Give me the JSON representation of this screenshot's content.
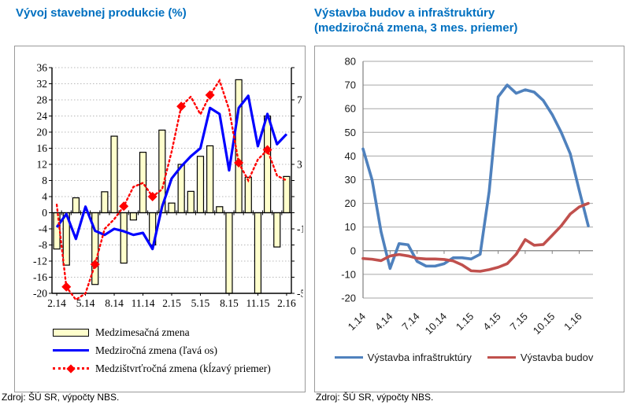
{
  "left_chart": {
    "title": "Vývoj stavebnej produkcie (%)",
    "source": "Zdroj: ŠÚ SR, výpočty NBS.",
    "legend": [
      {
        "label": "Medzimesačná zmena",
        "swatch": "bar-swatch"
      },
      {
        "label": "Medziročná zmena (ľavá os)",
        "swatch": "blue-line-swatch"
      },
      {
        "label": "Medzištvrťročná zmena (kĺzavý priemer)",
        "swatch": "red-dotted-diamond-swatch"
      }
    ]
  },
  "right_chart": {
    "title": "Výstavba budov a infraštruktúry\n(medziročná zmena, 3 mes. priemer)",
    "source": "Zdroj: ŠÚ SR, výpočty NBS.",
    "legend": [
      {
        "label": "Výstavba infraštruktúry",
        "color": "#4F81BD"
      },
      {
        "label": "Výstavba budov",
        "color": "#C0504D"
      }
    ]
  },
  "chart_data": [
    {
      "type": "combo",
      "title": "Vývoj stavebnej produkcie (%)",
      "categories": [
        "2.14",
        "3.14",
        "4.14",
        "5.14",
        "6.14",
        "7.14",
        "8.14",
        "9.14",
        "10.14",
        "11.14",
        "12.14",
        "1.15",
        "2.15",
        "3.15",
        "4.15",
        "5.15",
        "6.15",
        "7.15",
        "8.15",
        "9.15",
        "10.15",
        "11.15",
        "12.15",
        "1.16",
        "2.16"
      ],
      "x_tick_labels": [
        "2.14",
        "5.14",
        "8.14",
        "11.14",
        "2.15",
        "5.15",
        "8.15",
        "11.15",
        "2.16"
      ],
      "left_axis": {
        "min": -20,
        "max": 36,
        "step": 4
      },
      "right_axis": {
        "ticks": [
          7,
          3,
          -1,
          -5
        ],
        "left_units_per_right_unit": 4
      },
      "grid": "dotted",
      "series": [
        {
          "name": "Medzimesačná zmena",
          "type": "bar",
          "axis": "left",
          "color": "#FFFFCC",
          "border": "#000000",
          "values": [
            -9,
            -13,
            3.7,
            0,
            -17.8,
            5.2,
            19,
            -12.5,
            -1.8,
            15,
            -8,
            20.5,
            2.4,
            12,
            5.3,
            14,
            16.6,
            1.5,
            -20,
            33,
            8.8,
            -20,
            24,
            -8.5,
            9
          ]
        },
        {
          "name": "Medziročná zmena (ľavá os)",
          "type": "line",
          "axis": "left",
          "color": "#0000FF",
          "values": [
            -3.6,
            -0.3,
            -6.5,
            1.5,
            -4.5,
            -5.5,
            -4,
            -4.6,
            -5.5,
            -5,
            -9,
            1.5,
            8.5,
            11.5,
            14,
            16,
            26,
            24.5,
            10.5,
            26,
            29,
            16.5,
            24.5,
            17,
            19.5
          ]
        },
        {
          "name": "Medzištvrťročná zmena (kĺzavý priemer)",
          "type": "dotted-line",
          "axis": "right",
          "color": "#FF0000",
          "marker": "diamond",
          "marker_indices": [
            1,
            4,
            7,
            10,
            13,
            16,
            19,
            22
          ],
          "values": [
            0.5,
            -4.6,
            -5.4,
            -5,
            -3.2,
            -1,
            -0.4,
            0.4,
            1.6,
            1.85,
            1,
            1.45,
            3.8,
            6.6,
            7.2,
            6.1,
            7.3,
            8.2,
            6.4,
            3.1,
            2,
            3.3,
            3.9,
            2.3,
            2
          ]
        }
      ]
    },
    {
      "type": "line",
      "title": "Výstavba budov a infraštruktúry (medziročná zmena, 3 mes. priemer)",
      "categories": [
        "1.14",
        "2.14",
        "3.14",
        "4.14",
        "5.14",
        "6.14",
        "7.14",
        "8.14",
        "9.14",
        "10.14",
        "11.14",
        "12.14",
        "1.15",
        "2.15",
        "3.15",
        "4.15",
        "5.15",
        "6.15",
        "7.15",
        "8.15",
        "9.15",
        "10.15",
        "11.15",
        "12.15",
        "1.16",
        "2.16"
      ],
      "x_tick_labels": [
        "1.14",
        "4.14",
        "7.14",
        "10.14",
        "1.15",
        "4.15",
        "7.15",
        "10.15",
        "1.16"
      ],
      "y_axis": {
        "min": -20,
        "max": 80,
        "step": 10
      },
      "grid": "solid",
      "legend_position": "bottom",
      "series": [
        {
          "name": "Výstavba infraštruktúry",
          "color": "#4F81BD",
          "values": [
            43,
            30,
            8,
            -7.5,
            3,
            2.5,
            -4.5,
            -6.5,
            -6.5,
            -5.5,
            -3,
            -3,
            -3.5,
            -1.5,
            25,
            65,
            70,
            66.5,
            68,
            67,
            63.5,
            57.5,
            50,
            41,
            25.5,
            10.5
          ]
        },
        {
          "name": "Výstavba budov",
          "color": "#C0504D",
          "values": [
            -3.3,
            -3.6,
            -4.2,
            -2.2,
            -1.6,
            -2.2,
            -3.2,
            -3.5,
            -3.5,
            -3.7,
            -4.3,
            -6,
            -8.5,
            -8.7,
            -8,
            -7,
            -5.5,
            -1.5,
            4.7,
            2.3,
            2.6,
            6.5,
            10.5,
            15.5,
            18.5,
            20
          ]
        }
      ]
    }
  ]
}
